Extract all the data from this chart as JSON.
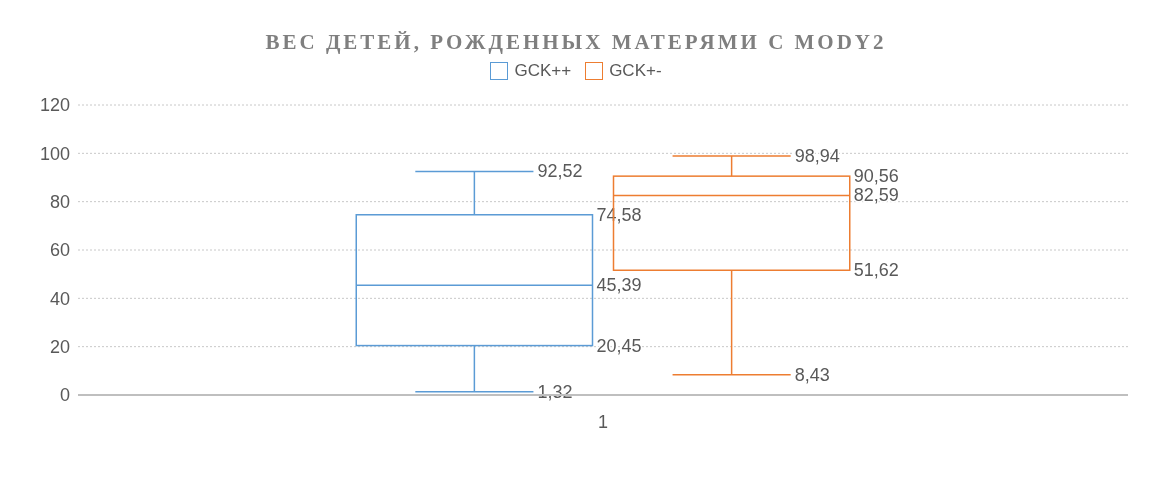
{
  "chart_data": {
    "type": "box",
    "title": "ВЕС ДЕТЕЙ, РОЖДЕННЫХ МАТЕРЯМИ С MODY2",
    "categories": [
      "1"
    ],
    "series": [
      {
        "name": "GCK++",
        "color": "#5b9bd5",
        "boxes": [
          {
            "low": 1.32,
            "q1": 20.45,
            "median": 45.39,
            "q3": 74.58,
            "high": 92.52
          }
        ],
        "value_labels": [
          [
            "1,32",
            "20,45",
            "45,39",
            "74,58",
            "92,52"
          ]
        ]
      },
      {
        "name": "GCK+-",
        "color": "#ed7d31",
        "boxes": [
          {
            "low": 8.43,
            "q1": 51.62,
            "median": 82.59,
            "q3": 90.56,
            "high": 98.94
          }
        ],
        "value_labels": [
          [
            "8,43",
            "51,62",
            "82,59",
            "90,56",
            "98,94"
          ]
        ]
      }
    ],
    "ylim": [
      0,
      120
    ],
    "yticks": [
      0,
      20,
      40,
      60,
      80,
      100,
      120
    ],
    "grid": "y",
    "legend": "top"
  }
}
